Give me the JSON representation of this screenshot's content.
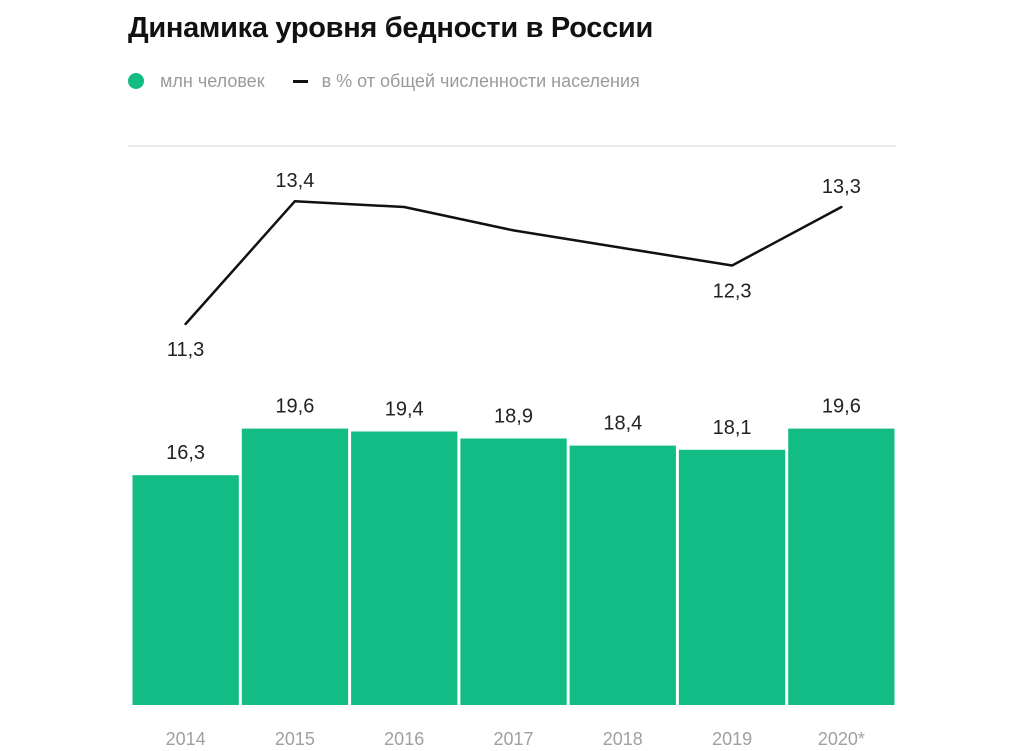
{
  "chart_data": {
    "type": "bar",
    "title": "Динамика уровня бедности в России",
    "categories": [
      "2014",
      "2015",
      "2016",
      "2017",
      "2018",
      "2019",
      "2020*"
    ],
    "series": [
      {
        "name": "млн человек",
        "kind": "bar",
        "color": "#13bc84",
        "values": [
          16.3,
          19.6,
          19.4,
          18.9,
          18.4,
          18.1,
          19.6
        ],
        "labels": [
          "16,3",
          "19,6",
          "19,4",
          "18,9",
          "18,4",
          "18,1",
          "19,6"
        ]
      },
      {
        "name": "в % от общей численности населения",
        "kind": "line",
        "color": "#111111",
        "values": [
          11.3,
          13.4,
          13.3,
          12.9,
          12.6,
          12.3,
          13.3
        ],
        "labels": [
          "11,3",
          "13,4",
          "",
          "",
          "",
          "12,3",
          "13,3"
        ]
      }
    ],
    "legend_position": "top-left",
    "grid": false
  }
}
